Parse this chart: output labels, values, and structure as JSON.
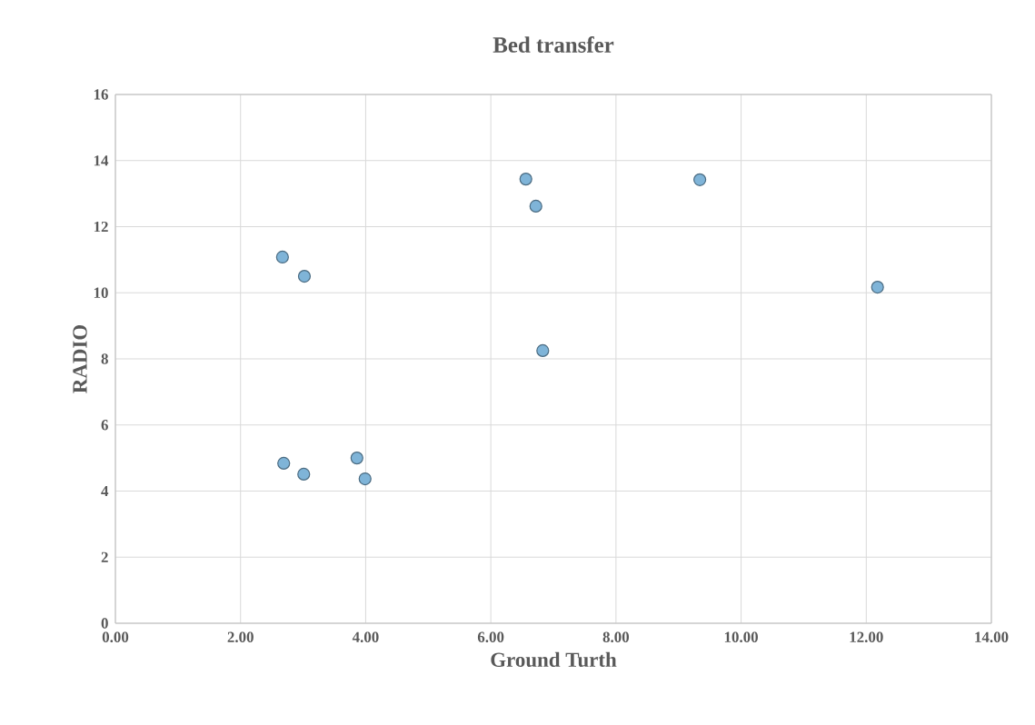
{
  "chart_data": {
    "type": "scatter",
    "title": "Bed transfer",
    "xlabel": "Ground Turth",
    "ylabel": "RADIO",
    "series": [
      {
        "color": "#7fb4d8",
        "x": [
          2.67,
          3.02,
          2.69,
          3.01,
          3.86,
          3.99,
          6.56,
          6.72,
          6.83,
          9.34,
          12.18
        ],
        "values": [
          11.08,
          10.5,
          4.84,
          4.51,
          5.0,
          4.37,
          13.44,
          12.62,
          8.25,
          13.42,
          10.17
        ]
      }
    ],
    "xlim": [
      0,
      14
    ],
    "ylim": [
      0,
      16
    ],
    "xticks": [
      {
        "value": 0,
        "label": "0.00"
      },
      {
        "value": 2,
        "label": "2.00"
      },
      {
        "value": 4,
        "label": "4.00"
      },
      {
        "value": 6,
        "label": "6.00"
      },
      {
        "value": 8,
        "label": "8.00"
      },
      {
        "value": 10,
        "label": "10.00"
      },
      {
        "value": 12,
        "label": "12.00"
      },
      {
        "value": 14,
        "label": "14.00"
      }
    ],
    "yticks": [
      0,
      2,
      4,
      6,
      8,
      10,
      12,
      14,
      16
    ],
    "grid": true
  }
}
